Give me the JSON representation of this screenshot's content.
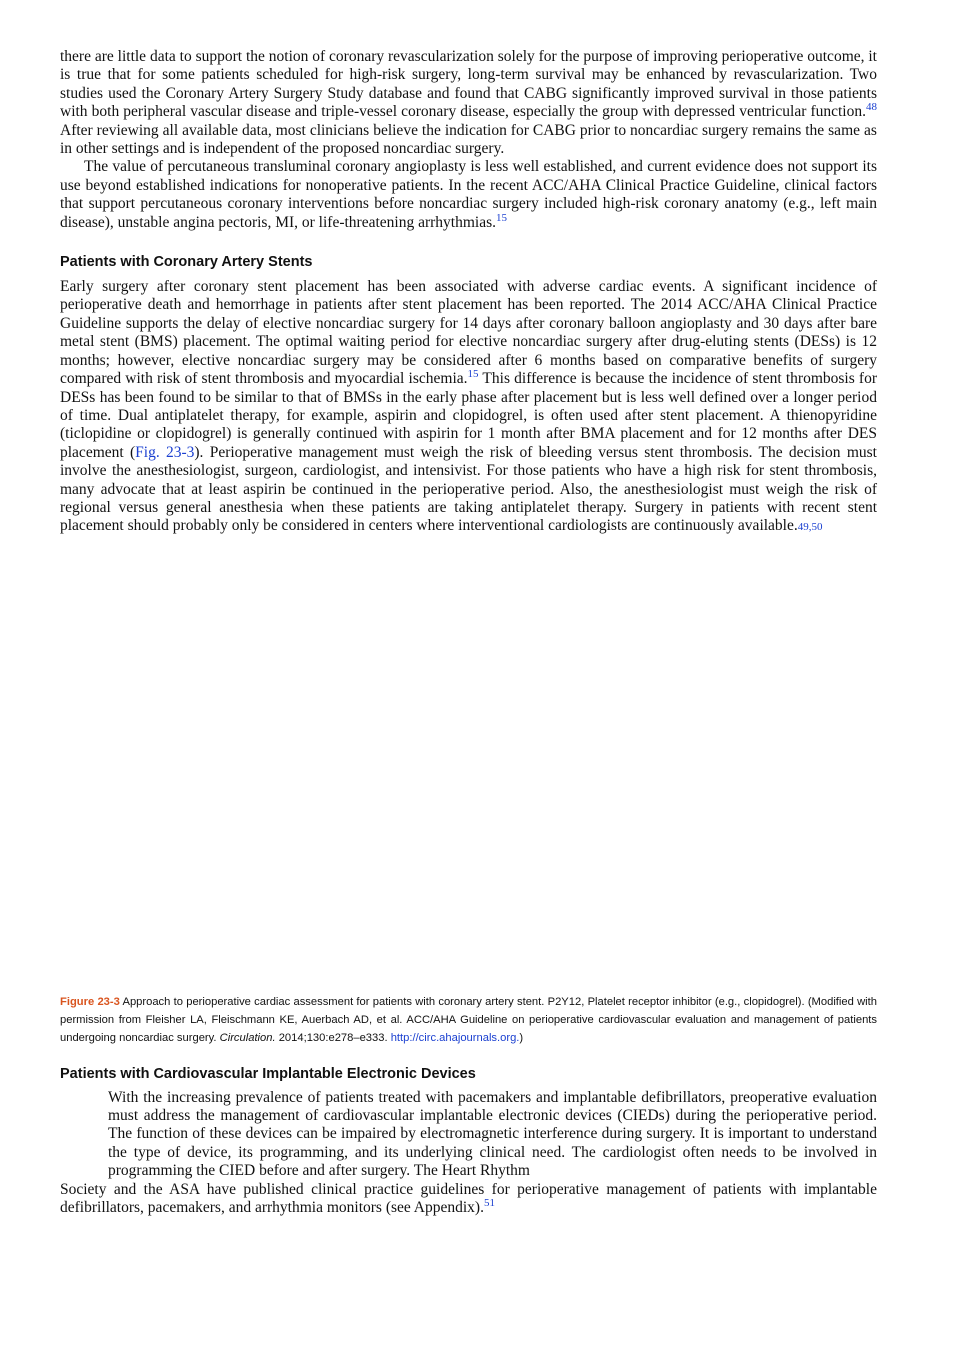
{
  "section1": {
    "para1": "there are little data to support the notion of coronary revascularization solely for the purpose of improving perioperative outcome, it is true that for some patients scheduled for high-risk surgery, long-term survival may be enhanced by revascularization. Two studies used the Coronary Artery Surgery Study database and found that CABG significantly improved survival in those patients with both peripheral vascular disease and triple-vessel coronary disease, especially the group with depressed ventricular function.",
    "para1_ref": "48",
    "para1_cont": " After reviewing all available data, most clinicians believe the indication for CABG prior to noncardiac surgery remains the same as in other settings and is independent of the proposed noncardiac surgery.",
    "para2": "The value of percutaneous transluminal coronary angioplasty is less well established, and current evidence does not support its use beyond established indications for nonoperative patients. In the recent ACC/AHA Clinical Practice Guideline, clinical factors that support percutaneous coronary interventions before noncardiac surgery included high-risk coronary anatomy (e.g., left main disease), unstable angina pectoris, MI, or life-threatening arrhythmias.",
    "para2_ref": "15"
  },
  "section2": {
    "heading": "Patients with Coronary Artery Stents",
    "p_a": "Early surgery after coronary stent placement has been associated with adverse cardiac events. A significant incidence of perioperative death and hemorrhage in patients after stent placement has been reported. The 2014 ACC/AHA Clinical Practice Guideline supports the delay of elective noncardiac surgery for 14 days after coronary balloon angioplasty and 30 days after bare metal stent (BMS) placement. The optimal waiting period for elective noncardiac surgery after drug-eluting stents (DESs) is 12 months; however, elective noncardiac surgery may be considered after 6 months based on comparative benefits of surgery compared with risk of stent thrombosis and myocardial ischemia.",
    "ref_a": "15",
    "p_b": " This difference is because the incidence of stent thrombosis for DESs has been found to be similar to that of BMSs in the early phase after placement but is less well defined over a longer period of time. Dual antiplatelet therapy, for example, aspirin and clopidogrel, is often used after stent placement. A thienopyridine (ticlopidine or clopidogrel) is generally continued with aspirin for 1 month after BMA placement and for 12 months after DES placement (",
    "fig_ref": "Fig. 23-3",
    "p_c": "). Perioperative management must weigh the risk of bleeding versus stent thrombosis. The decision must involve the anesthesiologist, surgeon, cardiologist, and intensivist. For those patients who have a high risk for stent thrombosis, many advocate that at least aspirin be continued in the perioperative period. Also, the anesthesiologist must weigh the risk of regional versus general anesthesia when these patients are taking antiplatelet therapy. Surgery in patients with recent stent placement should probably only be considered in centers where interventional cardiologists are continuously available.",
    "ref_c": "49,50"
  },
  "figure": {
    "label": "Figure 23-3",
    "caption_a": " Approach to perioperative cardiac assessment for patients with coronary artery stent. P2Y12, Platelet receptor inhibitor (e.g., clopidogrel). (Modified with permission from Fleisher LA, Fleischmann KE, Auerbach AD, et al. ACC/AHA Guideline on perioperative cardiovascular evaluation and management of patients undergoing noncardiac surgery. ",
    "journal": "Circulation.",
    "caption_b": " 2014;130:e278–e333. ",
    "url": "http://circ.ahajournals.org.",
    "caption_c": ")"
  },
  "section3": {
    "heading": "Patients with Cardiovascular Implantable Electronic Devices",
    "p_a": "With the increasing prevalence of patients treated with pacemakers and implantable defibrillators, preoperative evaluation must address the management of cardiovascular implantable electronic devices (CIEDs) during the perioperative period. The function of these devices can be impaired by electromagnetic interference during surgery. It is important to understand the type of device, its programming, and its underlying clinical need. The cardiologist often needs to be involved in programming the CIED before and after surgery. The Heart Rhythm",
    "p_b": "Society and the ASA have published clinical practice guidelines for perioperative management of patients with implantable defibrillators, pacemakers, and arrhythmia monitors (see Appendix).",
    "ref": "51"
  }
}
